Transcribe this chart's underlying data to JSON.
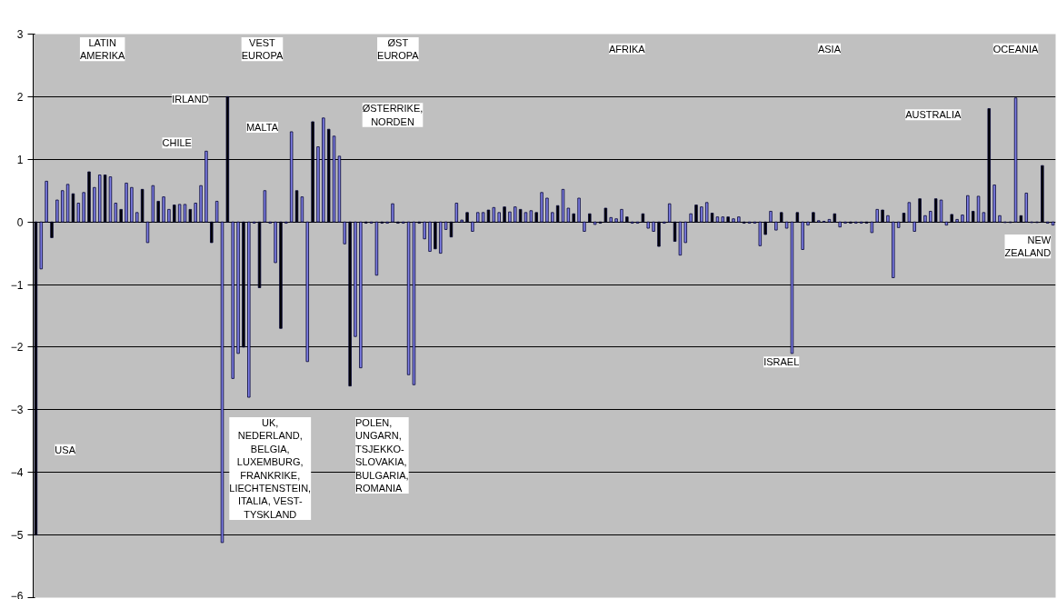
{
  "chart_data": {
    "type": "bar",
    "categories": [
      null,
      null,
      null,
      null,
      null,
      null,
      null,
      null,
      null,
      null,
      null,
      null,
      null,
      null,
      null,
      null,
      null,
      null,
      null,
      null,
      null,
      null,
      null,
      null,
      null,
      null,
      null,
      null,
      null,
      null,
      null,
      null,
      null,
      null,
      null,
      null,
      null,
      null,
      null,
      null,
      null,
      null,
      null,
      null,
      null,
      null,
      null,
      null,
      null,
      null,
      null,
      null,
      null,
      null,
      null,
      null,
      null,
      null,
      null,
      null,
      null,
      null,
      null,
      null,
      null,
      null,
      null,
      null,
      null,
      null,
      null,
      null,
      null,
      null,
      null,
      null,
      null,
      null,
      null,
      null,
      null,
      null,
      null,
      null,
      null,
      null,
      null,
      null,
      null,
      null,
      null,
      null,
      null,
      null,
      null,
      null,
      null,
      null,
      null,
      null,
      null,
      null,
      null,
      null,
      null,
      null,
      null,
      null,
      null,
      null,
      null,
      null,
      null,
      null,
      null,
      null,
      null,
      null,
      null,
      null,
      null,
      null,
      null,
      null,
      null,
      null,
      null,
      null,
      null,
      null,
      null,
      null,
      null,
      null,
      null,
      null,
      null,
      null,
      null,
      null,
      null,
      null,
      null,
      null,
      null,
      null,
      null,
      null,
      null,
      null,
      null,
      null,
      null,
      null,
      null,
      null,
      null,
      null,
      null,
      null,
      null,
      null,
      null,
      null,
      null,
      null,
      null,
      null,
      null,
      null,
      null,
      null,
      null,
      null,
      null,
      null,
      null,
      null,
      null,
      null,
      null,
      null,
      null,
      null,
      null,
      null,
      null,
      null,
      null,
      null,
      null,
      null
    ],
    "values": [
      -5.0,
      -0.75,
      0.65,
      -0.25,
      0.35,
      0.5,
      0.6,
      0.45,
      0.3,
      0.47,
      0.8,
      0.55,
      0.75,
      0.75,
      0.72,
      0.3,
      0.2,
      0.62,
      0.55,
      0.15,
      0.52,
      -0.33,
      0.58,
      0.33,
      0.4,
      0.2,
      0.27,
      0.28,
      0.28,
      0.2,
      0.3,
      0.58,
      1.13,
      -0.33,
      0.33,
      -5.12,
      2.0,
      -2.5,
      -2.1,
      -2.0,
      -2.8,
      -0.02,
      -1.05,
      0.5,
      -0.02,
      -0.65,
      -1.7,
      -0.02,
      1.44,
      0.5,
      0.4,
      -2.23,
      1.6,
      1.2,
      1.66,
      1.48,
      1.37,
      1.05,
      -0.35,
      -2.62,
      -1.83,
      -2.33,
      -0.02,
      -0.02,
      -0.85,
      -0.02,
      -0.02,
      0.29,
      -0.02,
      -0.02,
      -2.44,
      -2.6,
      -0.02,
      -0.27,
      -0.47,
      -0.43,
      -0.5,
      -0.12,
      -0.24,
      0.3,
      0.03,
      0.15,
      -0.15,
      0.15,
      0.15,
      0.19,
      0.23,
      0.15,
      0.24,
      0.16,
      0.24,
      0.2,
      0.15,
      0.18,
      0.15,
      0.47,
      0.38,
      0.15,
      0.26,
      0.52,
      0.22,
      0.13,
      0.38,
      -0.15,
      0.13,
      -0.04,
      -0.02,
      0.22,
      0.07,
      0.05,
      0.2,
      0.08,
      -0.02,
      -0.02,
      0.13,
      -0.1,
      -0.15,
      -0.39,
      -0.02,
      0.29,
      -0.31,
      -0.53,
      -0.33,
      0.13,
      0.27,
      0.24,
      0.31,
      0.14,
      0.08,
      0.08,
      0.08,
      0.05,
      0.08,
      -0.02,
      -0.02,
      -0.02,
      -0.38,
      -0.2,
      0.17,
      -0.13,
      0.15,
      -0.1,
      -2.1,
      0.15,
      -0.44,
      -0.05,
      0.15,
      0.02,
      0.01,
      0.04,
      0.13,
      -0.08,
      -0.02,
      -0.02,
      -0.02,
      -0.02,
      -0.02,
      -0.17,
      0.2,
      0.19,
      0.1,
      -0.89,
      -0.09,
      0.14,
      0.31,
      -0.15,
      0.37,
      0.1,
      0.17,
      0.37,
      0.35,
      -0.05,
      0.12,
      0.04,
      0.11,
      0.42,
      0.17,
      0.41,
      0.15,
      1.81,
      0.59,
      0.1,
      -0.01,
      -0.01,
      1.98,
      0.1,
      0.46,
      -0.01,
      -0.01,
      0.9,
      -0.02,
      -0.05
    ],
    "colors": [
      "#000000",
      "#8080e8",
      "#8080e8",
      "#000000",
      "#8080e8",
      "#8080e8",
      "#8080e8",
      "#000000",
      "#8080e8",
      "#8080e8",
      "#000000",
      "#8080e8",
      "#8080e8",
      "#000000",
      "#8080e8",
      "#8080e8",
      "#000000",
      "#8080e8",
      "#8080e8",
      "#8080e8",
      "#000000",
      "#8080e8",
      "#8080e8",
      "#000000",
      "#8080e8",
      "#8080e8",
      "#000000",
      "#8080e8",
      "#8080e8",
      "#000000",
      "#8080e8",
      "#8080e8",
      "#8080e8",
      "#000000",
      "#8080e8",
      "#8080e8",
      "#000000",
      "#8080e8",
      "#8080e8",
      "#000000",
      "#8080e8",
      "#8080e8",
      "#000000",
      "#8080e8",
      "#8080e8",
      "#8080e8",
      "#000000",
      "#8080e8",
      "#8080e8",
      "#000000",
      "#8080e8",
      "#8080e8",
      "#000000",
      "#8080e8",
      "#8080e8",
      "#000000",
      "#8080e8",
      "#8080e8",
      "#8080e8",
      "#000000",
      "#8080e8",
      "#8080e8",
      "#000000",
      "#8080e8",
      "#8080e8",
      "#000000",
      "#8080e8",
      "#8080e8",
      "#000000",
      "#8080e8",
      "#8080e8",
      "#8080e8",
      "#000000",
      "#8080e8",
      "#8080e8",
      "#000000",
      "#8080e8",
      "#8080e8",
      "#000000",
      "#8080e8",
      "#8080e8",
      "#000000",
      "#8080e8",
      "#8080e8",
      "#8080e8",
      "#000000",
      "#8080e8",
      "#8080e8",
      "#000000",
      "#8080e8",
      "#8080e8",
      "#000000",
      "#8080e8",
      "#8080e8",
      "#000000",
      "#8080e8",
      "#8080e8",
      "#8080e8",
      "#000000",
      "#8080e8",
      "#8080e8",
      "#000000",
      "#8080e8",
      "#8080e8",
      "#000000",
      "#8080e8",
      "#000000",
      "#000000",
      "#8080e8",
      "#8080e8",
      "#8080e8",
      "#000000",
      "#8080e8",
      "#8080e8",
      "#000000",
      "#8080e8",
      "#8080e8",
      "#000000",
      "#8080e8",
      "#8080e8",
      "#000000",
      "#8080e8",
      "#8080e8",
      "#8080e8",
      "#000000",
      "#8080e8",
      "#8080e8",
      "#000000",
      "#8080e8",
      "#8080e8",
      "#000000",
      "#8080e8",
      "#8080e8",
      "#000000",
      "#8080e8",
      "#8080e8",
      "#8080e8",
      "#000000",
      "#8080e8",
      "#8080e8",
      "#000000",
      "#8080e8",
      "#8080e8",
      "#000000",
      "#8080e8",
      "#8080e8",
      "#000000",
      "#8080e8",
      "#8080e8",
      "#8080e8",
      "#000000",
      "#8080e8",
      "#8080e8",
      "#000000",
      "#8080e8",
      "#8080e8",
      "#000000",
      "#8080e8",
      "#8080e8",
      "#000000",
      "#8080e8",
      "#8080e8",
      "#8080e8",
      "#000000",
      "#8080e8",
      "#8080e8",
      "#000000",
      "#8080e8",
      "#8080e8",
      "#000000",
      "#8080e8",
      "#8080e8",
      "#000000",
      "#8080e8",
      "#8080e8",
      "#8080e8",
      "#000000",
      "#8080e8",
      "#8080e8",
      "#000000",
      "#8080e8",
      "#8080e8",
      "#8080e8",
      "#000000",
      "#8080e8",
      "#000000",
      "#8080e8",
      "#8080e8",
      "#000000",
      "#000000",
      "#8080e8",
      "#8080e8"
    ],
    "ylim": [
      -6,
      3
    ],
    "yticks": [
      -6,
      -5,
      -4,
      -3,
      -2,
      -1,
      0,
      1,
      2,
      3
    ],
    "grid": "y",
    "tick_labels": "y",
    "annotations": [
      "LATIN\nAMERIKA",
      "VEST\nEUROPA",
      "ØST\nEUROPA",
      "AFRIKA",
      "ASIA",
      "OCEANIA",
      "IRLAND",
      "CHILE",
      "MALTA",
      "ØSTERRIKE,\nNORDEN",
      "AUSTRALIA",
      "NEW\nZEALAND",
      "ISRAEL",
      "USA",
      "UK,\nNEDERLAND,\nBELGIA,\nLUXEMBURG,\nFRANKRIKE,\nLIECHTENSTEIN,\nITALIA, VEST-\nTYSKLAND",
      "POLEN,\nUNGARN,\nTSJEKKO-\nSLOVAKIA,\nBULGARIA,\nROMANIA"
    ]
  }
}
